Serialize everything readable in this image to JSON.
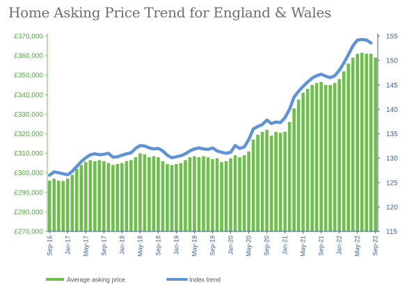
{
  "chart_data": {
    "type": "bar",
    "title": "Home Asking Price Trend for England & Wales",
    "y_left": {
      "ylim": [
        270000,
        370000
      ],
      "ticks": [
        "£270,000",
        "£280,000",
        "£290,000",
        "£300,000",
        "£310,000",
        "£320,000",
        "£330,000",
        "£340,000",
        "£350,000",
        "£360,000",
        "£370,000"
      ]
    },
    "y_right": {
      "ylim": [
        115,
        155
      ],
      "ticks": [
        "115",
        "120",
        "125",
        "130",
        "135",
        "140",
        "145",
        "150",
        "155"
      ]
    },
    "x_tick_labels": [
      {
        "index": 0,
        "label": "Sep-16"
      },
      {
        "index": 4,
        "label": "Jan-17"
      },
      {
        "index": 8,
        "label": "May-17"
      },
      {
        "index": 12,
        "label": "Sep-17"
      },
      {
        "index": 16,
        "label": "Jan-18"
      },
      {
        "index": 20,
        "label": "May-18"
      },
      {
        "index": 24,
        "label": "Sep-18"
      },
      {
        "index": 28,
        "label": "Jan-19"
      },
      {
        "index": 32,
        "label": "May-19"
      },
      {
        "index": 36,
        "label": "Sep-19"
      },
      {
        "index": 40,
        "label": "Jan-20"
      },
      {
        "index": 44,
        "label": "May-20"
      },
      {
        "index": 48,
        "label": "Sep-20"
      },
      {
        "index": 52,
        "label": "Jan-21"
      },
      {
        "index": 56,
        "label": "May-21"
      },
      {
        "index": 60,
        "label": "Sep-21"
      },
      {
        "index": 64,
        "label": "Jan-22"
      },
      {
        "index": 68,
        "label": "May-22"
      },
      {
        "index": 72,
        "label": "Sep-22"
      }
    ],
    "series": [
      {
        "name": "Average asking price",
        "type": "bar",
        "axis": "left",
        "color": "#6cc04a",
        "values": [
          296000,
          297000,
          296000,
          295800,
          297000,
          299000,
          302000,
          304000,
          305500,
          306500,
          306000,
          306500,
          306000,
          305000,
          304000,
          304500,
          305000,
          306000,
          306500,
          308000,
          310000,
          309500,
          308000,
          308500,
          308000,
          306000,
          304500,
          304000,
          304500,
          305000,
          306500,
          308000,
          308500,
          308000,
          308500,
          308000,
          307000,
          307500,
          305500,
          306000,
          307500,
          309000,
          308000,
          309000,
          311000,
          317000,
          319500,
          321000,
          322000,
          319000,
          321000,
          320500,
          321000,
          326000,
          333000,
          337500,
          341000,
          343000,
          345000,
          346000,
          346500,
          345000,
          345000,
          346000,
          348000,
          352000,
          356000,
          359000,
          361000,
          361500,
          361000,
          361000,
          359000
        ]
      },
      {
        "name": "Index trend",
        "type": "line",
        "axis": "right",
        "color": "#5f93d8",
        "values": [
          126.5,
          127.2,
          127.0,
          126.8,
          126.6,
          127.3,
          128.3,
          129.3,
          130.1,
          130.7,
          130.9,
          130.7,
          130.8,
          131.0,
          130.2,
          130.3,
          130.6,
          130.9,
          131.1,
          132.0,
          132.6,
          132.5,
          132.1,
          131.9,
          132.0,
          131.5,
          130.6,
          130.1,
          130.3,
          130.5,
          130.9,
          131.5,
          131.9,
          132.1,
          131.9,
          131.8,
          132.1,
          131.5,
          131.2,
          131.0,
          131.2,
          132.6,
          132.0,
          132.3,
          133.8,
          136.0,
          136.5,
          136.9,
          137.8,
          137.1,
          137.4,
          137.3,
          138.3,
          140.0,
          142.5,
          143.7,
          144.7,
          145.6,
          146.4,
          146.9,
          147.2,
          146.8,
          146.5,
          146.9,
          148.0,
          149.5,
          151.2,
          153.0,
          154.2,
          154.3,
          154.2,
          153.6
        ]
      }
    ],
    "legend": [
      "Average asking price",
      "Index trend"
    ],
    "legend_position": "bottom",
    "grid": false
  }
}
